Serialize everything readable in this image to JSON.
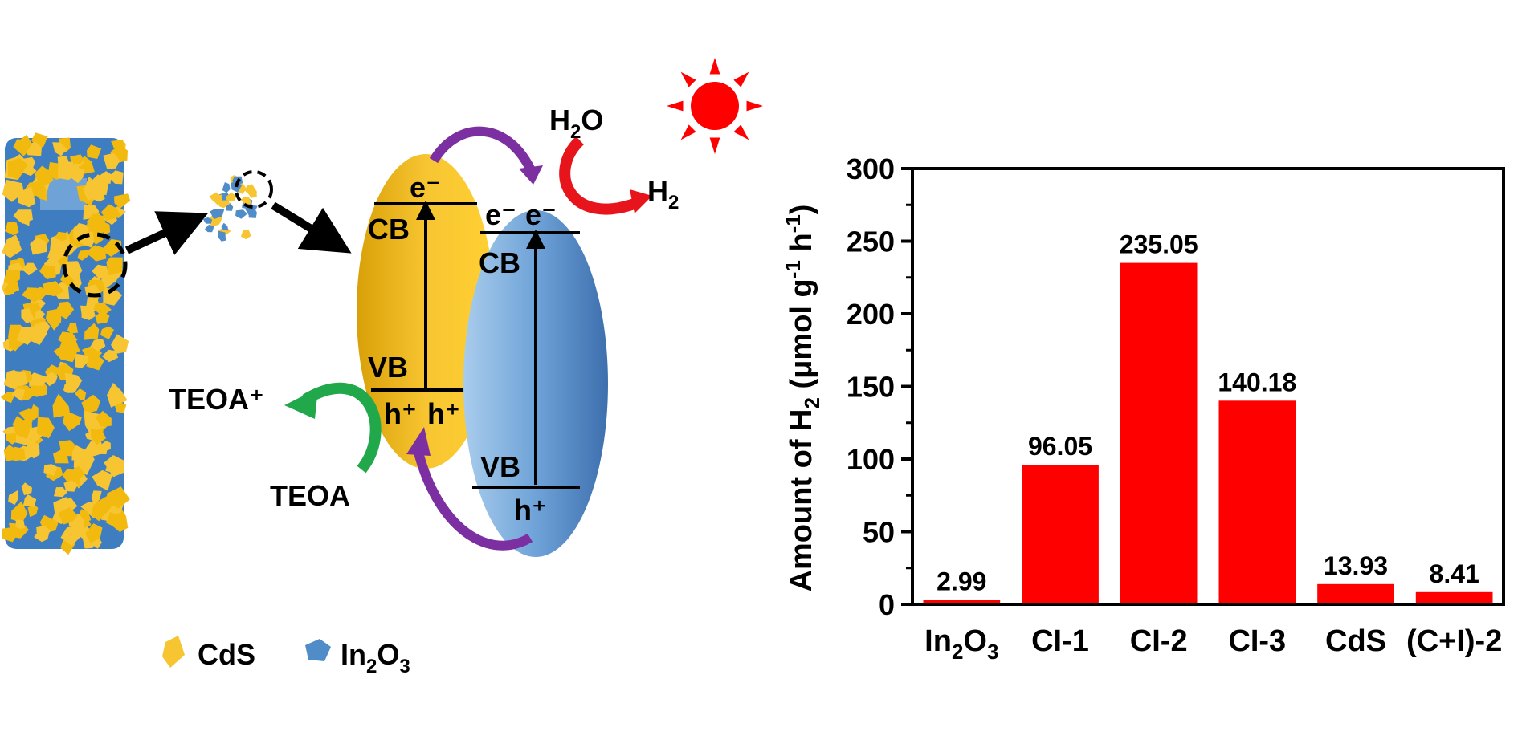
{
  "schematic": {
    "legend": [
      {
        "label": "CdS",
        "color": "#F7C531"
      },
      {
        "label": "In",
        "sub1": "2",
        "mid": "O",
        "sub2": "3",
        "color": "#4F8CC8"
      }
    ],
    "cds_band": {
      "cb": "CB",
      "vb": "VB",
      "electron": "e⁻",
      "holes": [
        "h⁺",
        "h⁺"
      ]
    },
    "in2o3_band": {
      "cb": "CB",
      "vb": "VB",
      "electrons": [
        "e⁻",
        "e⁻"
      ],
      "hole": "h⁺"
    },
    "water": {
      "h": "H",
      "sub": "2",
      "o": "O"
    },
    "hydrogen": {
      "h": "H",
      "sub": "2"
    },
    "teoa_plus": "TEOA⁺",
    "teoa": "TEOA",
    "colors": {
      "cds": "#F2B90F",
      "in2o3": "#4F8CC8",
      "sun": "#FF0000",
      "transfer_arrow": "#7B2FA0",
      "teoa_arrow": "#21A84A",
      "h2_arrow": "#E8141B"
    }
  },
  "chart_data": {
    "type": "bar",
    "categories": [
      "In2O3",
      "CI-1",
      "CI-2",
      "CI-3",
      "CdS",
      "(C+I)-2"
    ],
    "category_labels": [
      {
        "main": "In",
        "sub1": "2",
        "mid": "O",
        "sub2": "3"
      },
      {
        "main": "CI-1"
      },
      {
        "main": "CI-2"
      },
      {
        "main": "CI-3"
      },
      {
        "main": "CdS"
      },
      {
        "main": "(C+I)-2"
      }
    ],
    "values": [
      2.99,
      96.05,
      235.05,
      140.18,
      13.93,
      8.41
    ],
    "value_labels": [
      "2.99",
      "96.05",
      "235.05",
      "140.18",
      "13.93",
      "8.41"
    ],
    "ylim": [
      0,
      300
    ],
    "yticks": [
      0,
      50,
      100,
      150,
      200,
      250,
      300
    ],
    "ylabel": {
      "pre": "Amount of H",
      "sub": "2",
      "unit_a": " (μmol g",
      "sup1": "-1",
      "unit_b": " h",
      "sup2": "-1",
      "close": ")"
    },
    "bar_color": "#FF0000",
    "grid": false,
    "legend": "none"
  }
}
